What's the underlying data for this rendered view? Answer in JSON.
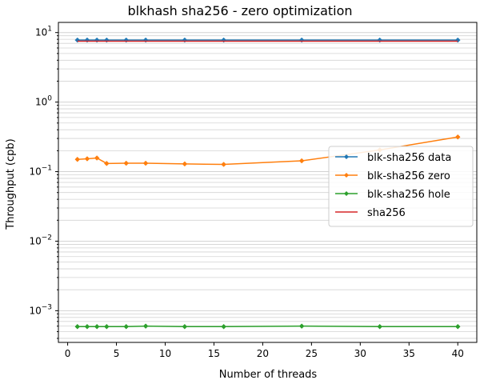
{
  "chart_data": {
    "type": "line",
    "title": "blkhash sha256 - zero optimization",
    "xlabel": "Number of threads",
    "ylabel": "Throughput (cpb)",
    "xlim": [
      -0.95,
      41.95
    ],
    "ylim": [
      0.00035,
      14
    ],
    "yscale": "log",
    "grid": "y-major-and-minor",
    "legend_placement": "center-right",
    "x": [
      1,
      2,
      3,
      4,
      6,
      8,
      12,
      16,
      24,
      32,
      40
    ],
    "x_ticks": [
      0,
      5,
      10,
      15,
      20,
      25,
      30,
      35,
      40
    ],
    "x_tick_labels": [
      "0",
      "5",
      "10",
      "15",
      "20",
      "25",
      "30",
      "35",
      "40"
    ],
    "y_ticks": [
      0.001,
      0.01,
      0.1,
      1,
      10
    ],
    "y_tick_labels": [
      {
        "base": "10",
        "exp": "−3"
      },
      {
        "base": "10",
        "exp": "−2"
      },
      {
        "base": "10",
        "exp": "−1"
      },
      {
        "base": "10",
        "exp": "0"
      },
      {
        "base": "10",
        "exp": "1"
      }
    ],
    "series": [
      {
        "name": "blk-sha256 data",
        "color": "#1f77b4",
        "marker": "diamond",
        "values": [
          7.8,
          7.8,
          7.8,
          7.8,
          7.8,
          7.8,
          7.8,
          7.8,
          7.8,
          7.8,
          7.8
        ]
      },
      {
        "name": "blk-sha256 zero",
        "color": "#ff7f0e",
        "marker": "diamond",
        "values": [
          0.15,
          0.153,
          0.157,
          0.131,
          0.132,
          0.132,
          0.129,
          0.127,
          0.143,
          0.205,
          0.315
        ]
      },
      {
        "name": "blk-sha256 hole",
        "color": "#2ca02c",
        "marker": "diamond",
        "values": [
          0.00059,
          0.00059,
          0.00059,
          0.00059,
          0.00059,
          0.0006,
          0.00059,
          0.00059,
          0.0006,
          0.00059,
          0.00059
        ]
      },
      {
        "name": "sha256",
        "color": "#d62728",
        "marker": "none",
        "values": [
          7.5,
          7.5,
          7.5,
          7.5,
          7.5,
          7.5,
          7.5,
          7.5,
          7.5,
          7.5,
          7.5
        ]
      }
    ]
  }
}
